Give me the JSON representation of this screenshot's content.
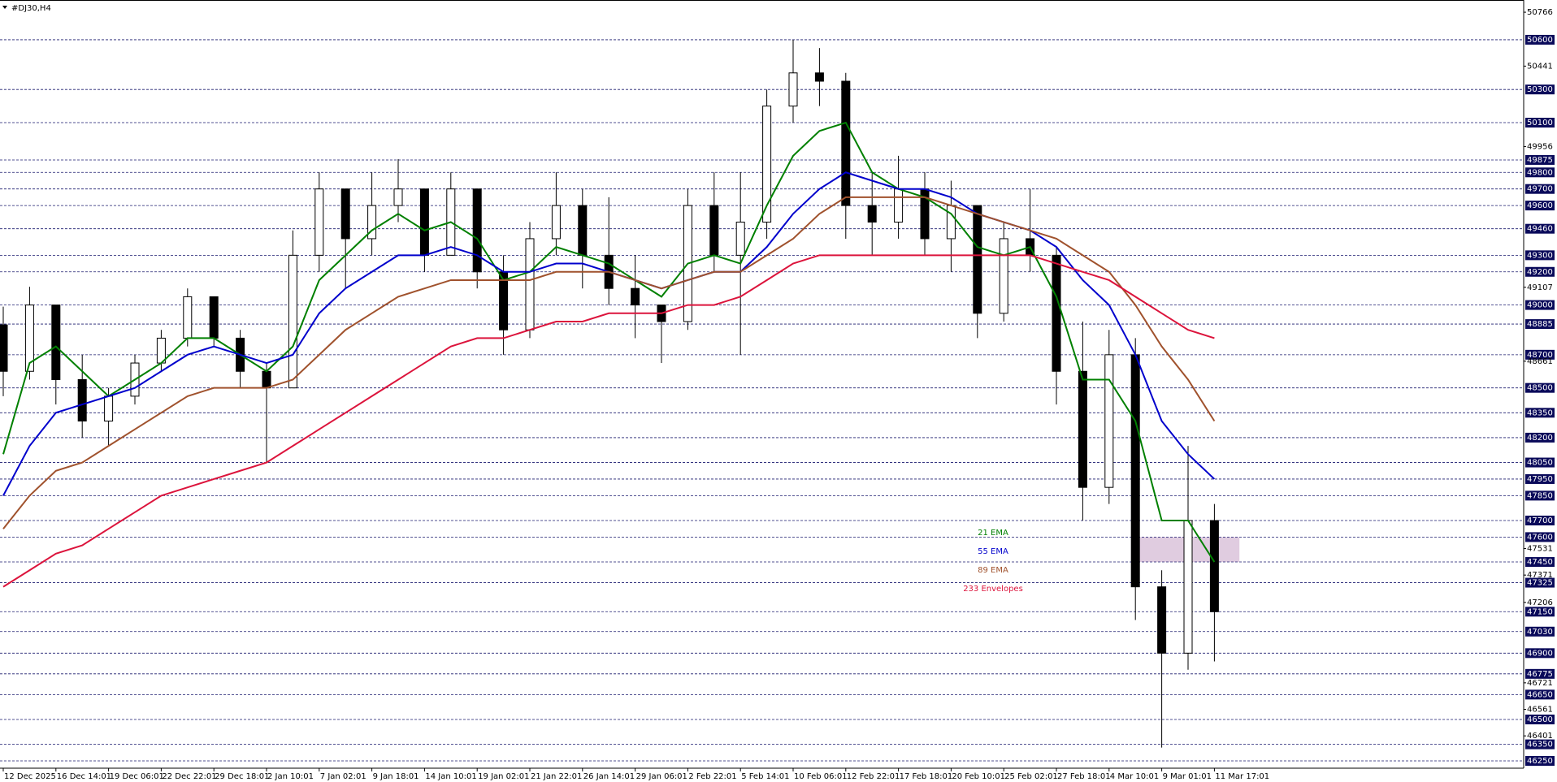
{
  "chart_data": {
    "type": "candlestick",
    "title": "#DJ30,H4",
    "categories": [
      "12 Dec 2025",
      null,
      "16 Dec 14:01",
      null,
      "19 Dec 06:01",
      null,
      "22 Dec 22:01",
      null,
      "29 Dec 18:01",
      null,
      "2 Jan 10:01",
      null,
      "7 Jan 02:01",
      null,
      "9 Jan 18:01",
      null,
      "14 Jan 10:01",
      null,
      "19 Jan 02:01",
      null,
      "21 Jan 22:01",
      null,
      "26 Jan 14:01",
      null,
      "29 Jan 06:01",
      null,
      "2 Feb 22:01",
      null,
      "5 Feb 14:01",
      null,
      "10 Feb 06:01",
      null,
      "12 Feb 22:01",
      null,
      "17 Feb 18:01",
      null,
      "20 Feb 10:01",
      null,
      "25 Feb 02:01",
      null,
      "27 Feb 18:01",
      null,
      "4 Mar 10:01",
      null,
      "9 Mar 01:01",
      null,
      "11 Mar 17:01"
    ],
    "open": [
      48880,
      48600,
      49000,
      48550,
      48300,
      48450,
      48650,
      48800,
      49050,
      48800,
      48600,
      48500,
      49300,
      49700,
      49400,
      49600,
      49700,
      49300,
      49700,
      49200,
      48850,
      49400,
      49600,
      49300,
      49100,
      49000,
      48900,
      49600,
      49300,
      49500,
      50200,
      50400,
      50350,
      49600,
      49500,
      49700,
      49400,
      49600,
      48950,
      49400,
      49300,
      48600,
      47900,
      48700,
      47300,
      46900,
      47700
    ],
    "high": [
      48990,
      49110,
      49000,
      48700,
      48500,
      48700,
      48850,
      49100,
      49050,
      48850,
      48650,
      49450,
      49800,
      49700,
      49800,
      49880,
      49700,
      49800,
      49700,
      49300,
      49500,
      49800,
      49700,
      49650,
      49300,
      49000,
      49700,
      49800,
      49800,
      50300,
      50600,
      50550,
      50400,
      49800,
      49900,
      49800,
      49750,
      49600,
      49500,
      49700,
      49350,
      48900,
      48850,
      48800,
      47400,
      48150,
      47800
    ],
    "low": [
      48450,
      48550,
      48400,
      48200,
      48150,
      48400,
      48600,
      48750,
      48750,
      48500,
      48050,
      48500,
      49200,
      49100,
      49300,
      49500,
      49200,
      49300,
      49100,
      48700,
      48800,
      49300,
      49100,
      49000,
      48800,
      48650,
      48850,
      49200,
      48700,
      49400,
      50100,
      50200,
      49400,
      49300,
      49400,
      49300,
      49200,
      48800,
      48900,
      49200,
      48400,
      47700,
      47800,
      47100,
      46330,
      46800,
      46850
    ],
    "close": [
      48600,
      49000,
      48550,
      48300,
      48450,
      48650,
      48800,
      49050,
      48800,
      48600,
      48500,
      49300,
      49700,
      49400,
      49600,
      49700,
      49300,
      49700,
      49200,
      48850,
      49400,
      49600,
      49300,
      49100,
      49000,
      48900,
      49600,
      49300,
      49500,
      50200,
      50400,
      50350,
      49600,
      49500,
      49700,
      49400,
      49600,
      48950,
      49400,
      49300,
      48600,
      47900,
      48700,
      47300,
      46900,
      47700,
      47150
    ],
    "series": [
      {
        "name": "21 EMA",
        "color": "#008000",
        "values": [
          48100,
          48650,
          48750,
          48600,
          48450,
          48550,
          48650,
          48800,
          48800,
          48700,
          48600,
          48750,
          49150,
          49300,
          49450,
          49550,
          49450,
          49500,
          49400,
          49150,
          49200,
          49350,
          49300,
          49250,
          49150,
          49050,
          49250,
          49300,
          49250,
          49600,
          49900,
          50050,
          50100,
          49800,
          49700,
          49650,
          49550,
          49350,
          49300,
          49350,
          49050,
          48550,
          48550,
          48300,
          47700,
          47700,
          47450
        ]
      },
      {
        "name": "55 EMA",
        "color": "#0000cc",
        "values": [
          47850,
          48150,
          48350,
          48400,
          48450,
          48500,
          48600,
          48700,
          48750,
          48700,
          48650,
          48700,
          48950,
          49100,
          49200,
          49300,
          49300,
          49350,
          49300,
          49200,
          49200,
          49250,
          49250,
          49200,
          49150,
          49100,
          49150,
          49200,
          49200,
          49350,
          49550,
          49700,
          49800,
          49750,
          49700,
          49700,
          49650,
          49550,
          49500,
          49450,
          49350,
          49150,
          49000,
          48700,
          48300,
          48100,
          47950
        ]
      },
      {
        "name": "89 EMA",
        "color": "#a0522d",
        "values": [
          47650,
          47850,
          48000,
          48050,
          48150,
          48250,
          48350,
          48450,
          48500,
          48500,
          48500,
          48550,
          48700,
          48850,
          48950,
          49050,
          49100,
          49150,
          49150,
          49150,
          49150,
          49200,
          49200,
          49200,
          49150,
          49100,
          49150,
          49200,
          49200,
          49300,
          49400,
          49550,
          49650,
          49650,
          49650,
          49650,
          49600,
          49550,
          49500,
          49450,
          49400,
          49300,
          49200,
          49000,
          48750,
          48550,
          48300
        ]
      },
      {
        "name": "233 Envelopes",
        "color": "#dc143c",
        "values": [
          47300,
          47400,
          47500,
          47550,
          47650,
          47750,
          47850,
          47900,
          47950,
          48000,
          48050,
          48150,
          48250,
          48350,
          48450,
          48550,
          48650,
          48750,
          48800,
          48800,
          48850,
          48900,
          48900,
          48950,
          48950,
          48950,
          49000,
          49000,
          49050,
          49150,
          49250,
          49300,
          49300,
          49300,
          49300,
          49300,
          49300,
          49300,
          49300,
          49300,
          49250,
          49200,
          49150,
          49050,
          48950,
          48850,
          48800
        ]
      }
    ],
    "ylim": [
      46206,
      50830
    ],
    "yticks": [
      50766,
      50441,
      49956,
      49107,
      48661,
      47531,
      47371,
      47206,
      46721,
      46561,
      46401
    ],
    "levels": [
      50600,
      50300,
      50100,
      49875,
      49800,
      49700,
      49600,
      49460,
      49300,
      49200,
      49000,
      48885,
      48700,
      48500,
      48350,
      48200,
      48050,
      47950,
      47850,
      47700,
      47600,
      47450,
      47325,
      47150,
      47030,
      46900,
      46775,
      46650,
      46500,
      46350,
      46250
    ],
    "zone": {
      "low": 47450,
      "high": 47600,
      "color": "#d8bfd8"
    }
  }
}
